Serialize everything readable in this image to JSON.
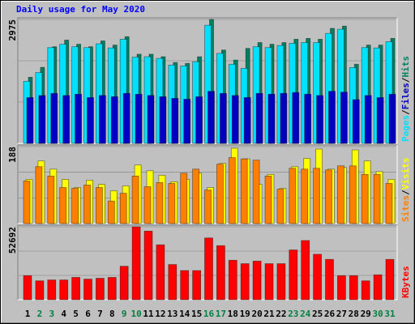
{
  "chart_data": [
    {
      "type": "bar",
      "title": "Daily usage for May 2020",
      "legend_separator": "/",
      "ylim": [
        0,
        2975
      ],
      "yticks": [
        2975
      ],
      "series": [
        {
          "name": "Pages",
          "color": "#00e0ff",
          "values": [
            1490,
            1700,
            2300,
            2380,
            2320,
            2300,
            2390,
            2290,
            2500,
            2070,
            2080,
            2040,
            1880,
            1860,
            1960,
            2835,
            2160,
            1900,
            1800,
            2320,
            2300,
            2350,
            2400,
            2420,
            2420,
            2640,
            2740,
            1820,
            2300,
            2290,
            2440
          ]
        },
        {
          "name": "Files",
          "color": "#0000c0",
          "values": [
            1100,
            1150,
            1200,
            1150,
            1180,
            1100,
            1150,
            1120,
            1200,
            1180,
            1150,
            1120,
            1080,
            1060,
            1120,
            1250,
            1200,
            1150,
            1100,
            1200,
            1180,
            1200,
            1220,
            1180,
            1150,
            1250,
            1230,
            1050,
            1150,
            1100,
            1180
          ]
        },
        {
          "name": "Hits",
          "color": "#008060",
          "values": [
            1587,
            1825,
            2320,
            2480,
            2380,
            2320,
            2460,
            2360,
            2560,
            2140,
            2140,
            2080,
            1940,
            1920,
            2080,
            2975,
            2240,
            2000,
            2280,
            2420,
            2380,
            2420,
            2500,
            2520,
            2500,
            2760,
            2815,
            1900,
            2360,
            2360,
            2520
          ]
        }
      ]
    },
    {
      "type": "bar",
      "legend_separator": "/",
      "ylim": [
        0,
        188
      ],
      "yticks": [
        188
      ],
      "series": [
        {
          "name": "Sites",
          "color": "#ff8000",
          "values": [
            104,
            139,
            116,
            88,
            86,
            94,
            88,
            55,
            74,
            116,
            90,
            100,
            98,
            123,
            133,
            82,
            145,
            161,
            158,
            155,
            116,
            84,
            135,
            133,
            135,
            131,
            141,
            141,
            120,
            120,
            98
          ]
        },
        {
          "name": "Visits",
          "color": "#ffff00",
          "values": [
            108,
            153,
            133,
            108,
            88,
            106,
            96,
            80,
            92,
            143,
            129,
            118,
            102,
            108,
            123,
            88,
            147,
            184,
            158,
            96,
            120,
            86,
            139,
            159,
            182,
            133,
            137,
            180,
            153,
            127,
            108
          ]
        }
      ]
    },
    {
      "type": "bar",
      "ylim": [
        0,
        52692
      ],
      "yticks": [
        52692
      ],
      "categories": [
        "1",
        "2",
        "3",
        "4",
        "5",
        "6",
        "7",
        "8",
        "9",
        "10",
        "11",
        "12",
        "13",
        "14",
        "15",
        "16",
        "17",
        "18",
        "19",
        "20",
        "21",
        "22",
        "23",
        "24",
        "25",
        "26",
        "27",
        "28",
        "29",
        "30",
        "31"
      ],
      "label_colors": [
        "#000000",
        "#008040",
        "#008040",
        "#000000",
        "#000000",
        "#000000",
        "#000000",
        "#000000",
        "#008040",
        "#008040",
        "#000000",
        "#000000",
        "#000000",
        "#000000",
        "#000000",
        "#008040",
        "#008040",
        "#000000",
        "#000000",
        "#000000",
        "#000000",
        "#000000",
        "#008040",
        "#008040",
        "#000000",
        "#000000",
        "#000000",
        "#000000",
        "#000000",
        "#008040",
        "#008040"
      ],
      "series": [
        {
          "name": "KBytes",
          "color": "#ff0000",
          "values": [
            17360,
            13640,
            14260,
            14260,
            16120,
            14880,
            15500,
            16120,
            24180,
            52692,
            49590,
            39670,
            25420,
            21080,
            21080,
            44630,
            39050,
            28510,
            26040,
            27900,
            26040,
            26040,
            35960,
            42780,
            32850,
            29130,
            17360,
            17360,
            13640,
            17980,
            29130
          ]
        }
      ]
    }
  ]
}
